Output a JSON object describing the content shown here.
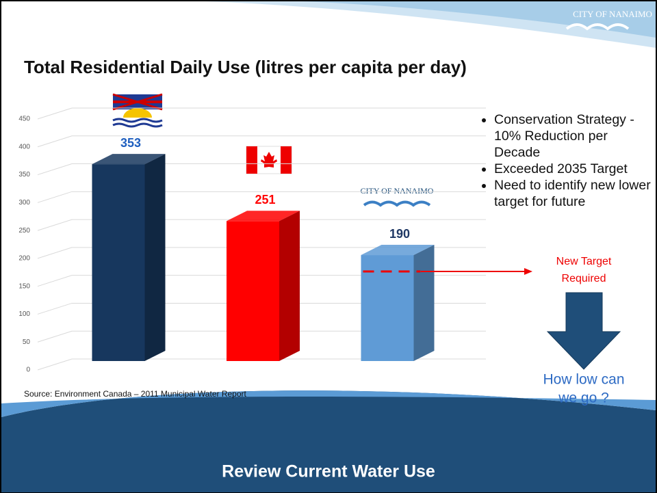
{
  "logo_text": "CITY OF NANAIMO",
  "chart_data": {
    "type": "bar3d",
    "title": "Total Residential Daily Use (litres per capita per day)",
    "categories": [
      "British Columbia",
      "Canada",
      "Nanaimo"
    ],
    "values": [
      353,
      251,
      190
    ],
    "colors": [
      "#17375e",
      "#ff0000",
      "#5f9bd6"
    ],
    "label_colors": [
      "#1f5fbf",
      "#ff0000",
      "#1f3864"
    ],
    "ylim": [
      0,
      450
    ],
    "yticks": [
      0,
      50,
      100,
      150,
      200,
      250,
      300,
      350,
      400,
      450
    ],
    "grid": true
  },
  "bullets": [
    "Conservation Strategy - 10% Reduction per Decade",
    "Exceeded 2035 Target",
    "Need to identify new lower target for future"
  ],
  "annotation": [
    "New Target",
    "Required"
  ],
  "question": [
    "How low can",
    "we go ?"
  ],
  "source": "Source: Environment Canada – 2011 Municipal Water Report",
  "footer": "Review Current Water Use"
}
